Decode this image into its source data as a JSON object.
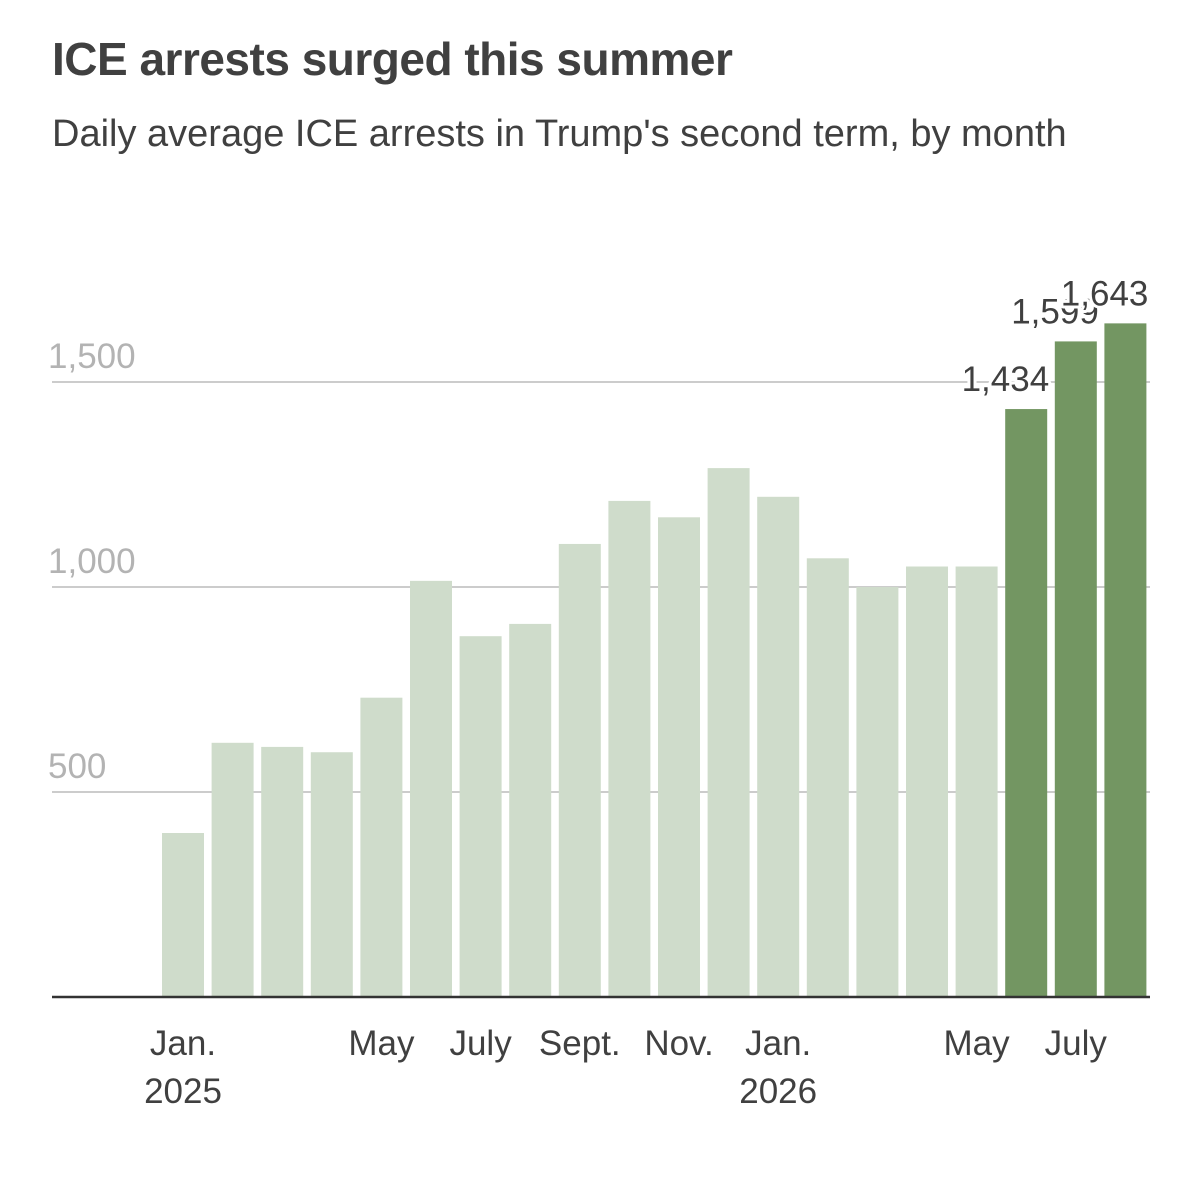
{
  "chart_data": {
    "type": "bar",
    "title": "ICE arrests surged this summer",
    "subtitle": "Daily average ICE arrests in Trump's second term, by month",
    "xlabel": "",
    "ylabel": "",
    "ylim": [
      0,
      1700
    ],
    "yticks": [
      500,
      1000,
      1500
    ],
    "ytick_labels": [
      "500",
      "1,000",
      "1,500"
    ],
    "grid": true,
    "categories": [
      "Jan. 2025",
      "Feb. 2025",
      "Mar. 2025",
      "Apr. 2025",
      "May 2025",
      "June 2025",
      "July 2025",
      "Aug. 2025",
      "Sept. 2025",
      "Oct. 2025",
      "Nov. 2025",
      "Dec. 2025",
      "Jan. 2026",
      "Feb. 2026",
      "Mar. 2026",
      "Apr. 2026",
      "May 2026",
      "June 2026",
      "July 2026",
      "Aug. 2026"
    ],
    "values": [
      400,
      620,
      610,
      597,
      730,
      1015,
      880,
      910,
      1105,
      1210,
      1170,
      1290,
      1220,
      1070,
      1000,
      1050,
      1050,
      1434,
      1599,
      1643
    ],
    "highlight": [
      false,
      false,
      false,
      false,
      false,
      false,
      false,
      false,
      false,
      false,
      false,
      false,
      false,
      false,
      false,
      false,
      false,
      true,
      true,
      true
    ],
    "colors": {
      "base": "#cfdccb",
      "highlight": "#739662",
      "grid": "#cccccc",
      "axis": "#333333"
    },
    "x_tick_labels": [
      {
        "index": 0,
        "lines": [
          "Jan.",
          "2025"
        ]
      },
      {
        "index": 4,
        "lines": [
          "May"
        ]
      },
      {
        "index": 6,
        "lines": [
          "July"
        ]
      },
      {
        "index": 8,
        "lines": [
          "Sept."
        ]
      },
      {
        "index": 10,
        "lines": [
          "Nov."
        ]
      },
      {
        "index": 12,
        "lines": [
          "Jan.",
          "2026"
        ]
      },
      {
        "index": 16,
        "lines": [
          "May"
        ]
      },
      {
        "index": 18,
        "lines": [
          "July"
        ]
      }
    ],
    "data_labels": [
      {
        "index": 17,
        "text": "1,434"
      },
      {
        "index": 18,
        "text": "1,599"
      },
      {
        "index": 19,
        "text": "1,643"
      }
    ]
  }
}
